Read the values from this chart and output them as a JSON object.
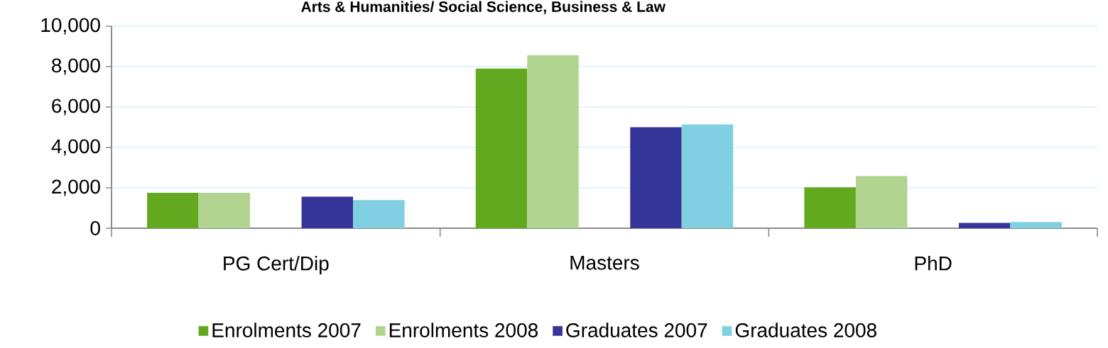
{
  "chart_data": {
    "type": "bar",
    "title": "Arts & Humanities/ Social Science, Business & Law",
    "categories": [
      "PG Cert/Dip",
      "Masters",
      "PhD"
    ],
    "series": [
      {
        "name": "Enrolments 2007",
        "color": "#63a920",
        "values": [
          1750,
          7900,
          2030
        ]
      },
      {
        "name": "Enrolments 2008",
        "color": "#b1d590",
        "values": [
          1750,
          8560,
          2590
        ]
      },
      {
        "name": "Graduates 2007",
        "color": "#35359a",
        "values": [
          1560,
          5000,
          260
        ]
      },
      {
        "name": "Graduates 2008",
        "color": "#80d0e2",
        "values": [
          1390,
          5140,
          310
        ]
      }
    ],
    "ylim": [
      0,
      10000
    ],
    "yticks": [
      {
        "value": 0,
        "label": "0"
      },
      {
        "value": 2000,
        "label": "2,000"
      },
      {
        "value": 4000,
        "label": "4,000"
      },
      {
        "value": 6000,
        "label": "6,000"
      },
      {
        "value": 8000,
        "label": "8,000"
      },
      {
        "value": 10000,
        "label": "10,000"
      }
    ],
    "grid": "y",
    "legend": "bottom"
  }
}
